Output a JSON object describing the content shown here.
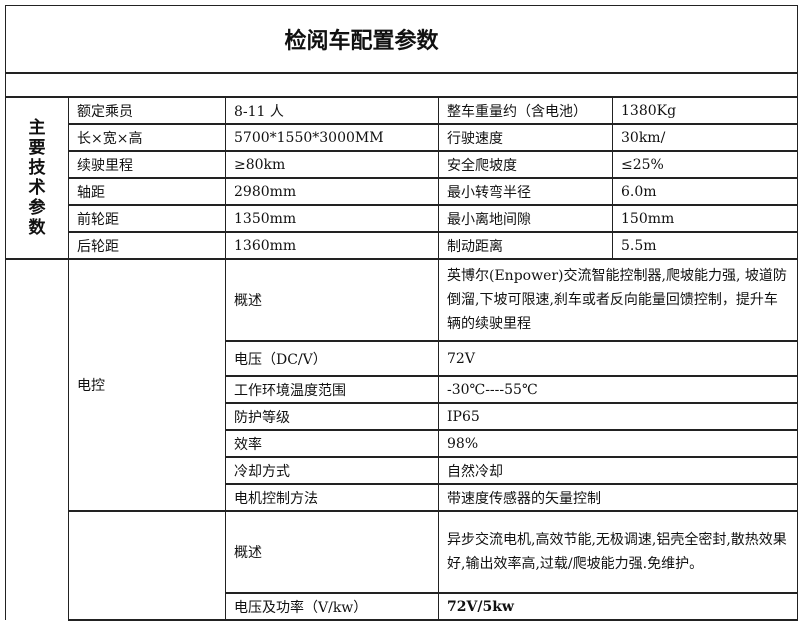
{
  "title": "检阅车配置参数",
  "main_section": {
    "label": "主要技术参数",
    "rows": [
      {
        "k1": "额定乘员",
        "v1": "8-11 人",
        "k2": "整车重量约（含电池）",
        "v2": "1380Kg"
      },
      {
        "k1": "长×宽×高",
        "v1": "5700*1550*3000MM",
        "k2": "行驶速度",
        "v2": "30km/"
      },
      {
        "k1": "续驶里程",
        "v1": "≥80km",
        "k2": "安全爬坡度",
        "v2": "≤25%"
      },
      {
        "k1": "轴距",
        "v1": "2980mm",
        "k2": "最小转弯半径",
        "v2": "6.0m"
      },
      {
        "k1": "前轮距",
        "v1": "1350mm",
        "k2": "最小离地间隙",
        "v2": "150mm"
      },
      {
        "k1": "后轮距",
        "v1": "1360mm",
        "k2": "制动距离",
        "v2": "5.5m"
      }
    ]
  },
  "electric_control": {
    "label": "电控",
    "rows": [
      {
        "k": "概述",
        "v": "英博尔(Enpower)交流智能控制器,爬坡能力强, 坡道防倒溜,下坡可限速,刹车或者反向能量回馈控制，提升车辆的续驶里程"
      },
      {
        "k": "电压（DC/V）",
        "v": "72V"
      },
      {
        "k": "工作环境温度范围",
        "v": "-30℃----55℃"
      },
      {
        "k": "防护等级",
        "v": "IP65"
      },
      {
        "k": "效率",
        "v": "98%"
      },
      {
        "k": "冷却方式",
        "v": "自然冷却"
      },
      {
        "k": "电机控制方法",
        "v": "带速度传感器的矢量控制"
      }
    ]
  },
  "motor": {
    "label": "",
    "rows": [
      {
        "k": "概述",
        "v": "异步交流电机,高效节能,无极调速,铝壳全密封,散热效果好,输出效率高,过载/爬坡能力强.免维护。"
      },
      {
        "k": "电压及功率（V/kw）",
        "v": "72V/5kw"
      }
    ]
  }
}
